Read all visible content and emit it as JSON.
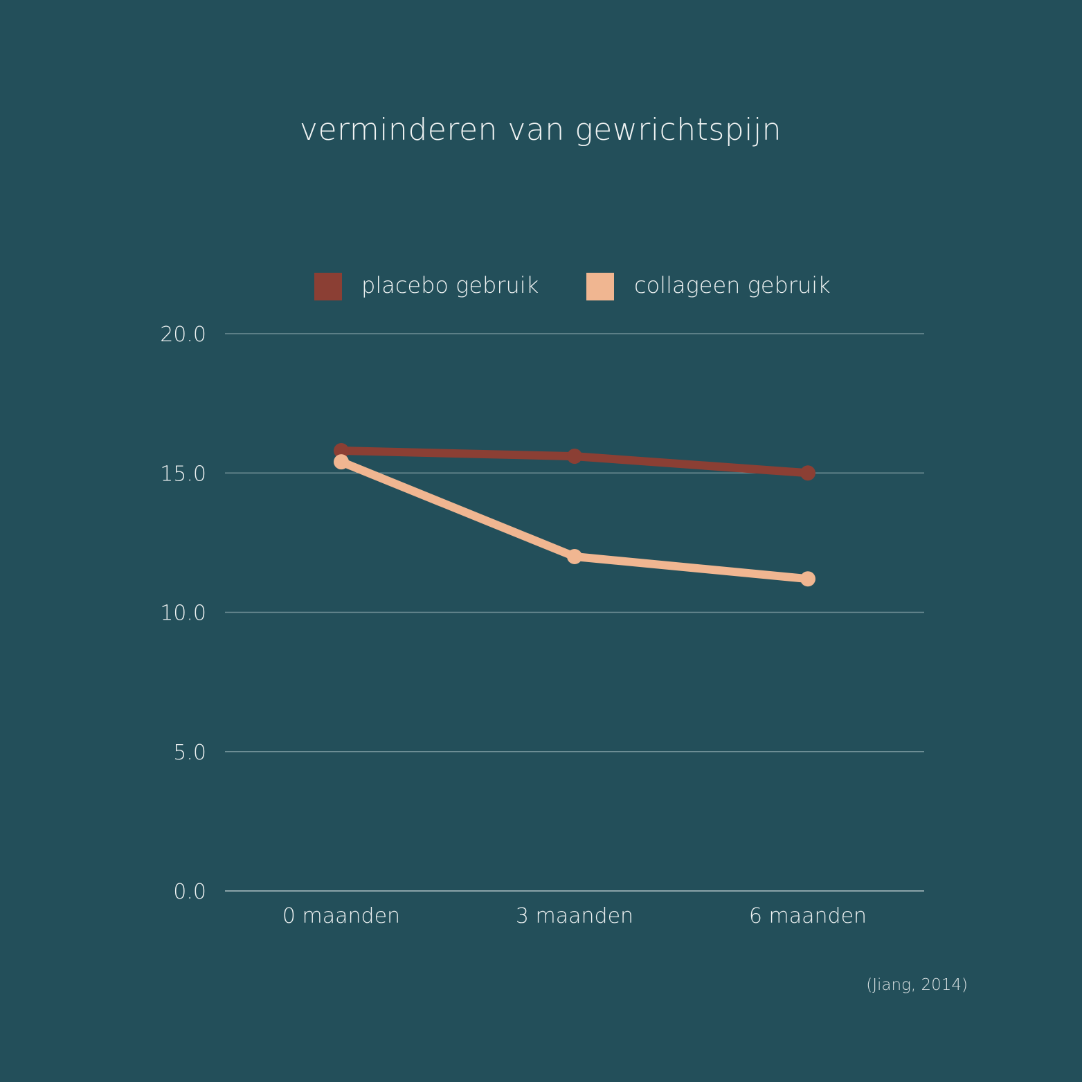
{
  "colors": {
    "background": "#234f5a",
    "grid": "#6f8f96",
    "baseline": "#8aa3a8",
    "text": "#eef2f2"
  },
  "chart_data": {
    "type": "line",
    "title": "verminderen van gewrichtspijn",
    "categories": [
      "0 maanden",
      "3 maanden",
      "6 maanden"
    ],
    "series": [
      {
        "name": "placebo gebruik",
        "color": "#8b3f34",
        "values": [
          15.8,
          15.6,
          15.0
        ]
      },
      {
        "name": "collageen gebruik",
        "color": "#f0b691",
        "values": [
          15.4,
          12.0,
          11.2
        ]
      }
    ],
    "yticks": [
      "0.0",
      "5.0",
      "10.0",
      "15.0",
      "20.0"
    ],
    "ylim": [
      0,
      20
    ],
    "grid": true,
    "legend": "top-center",
    "source": "(Jiang, 2014)"
  }
}
